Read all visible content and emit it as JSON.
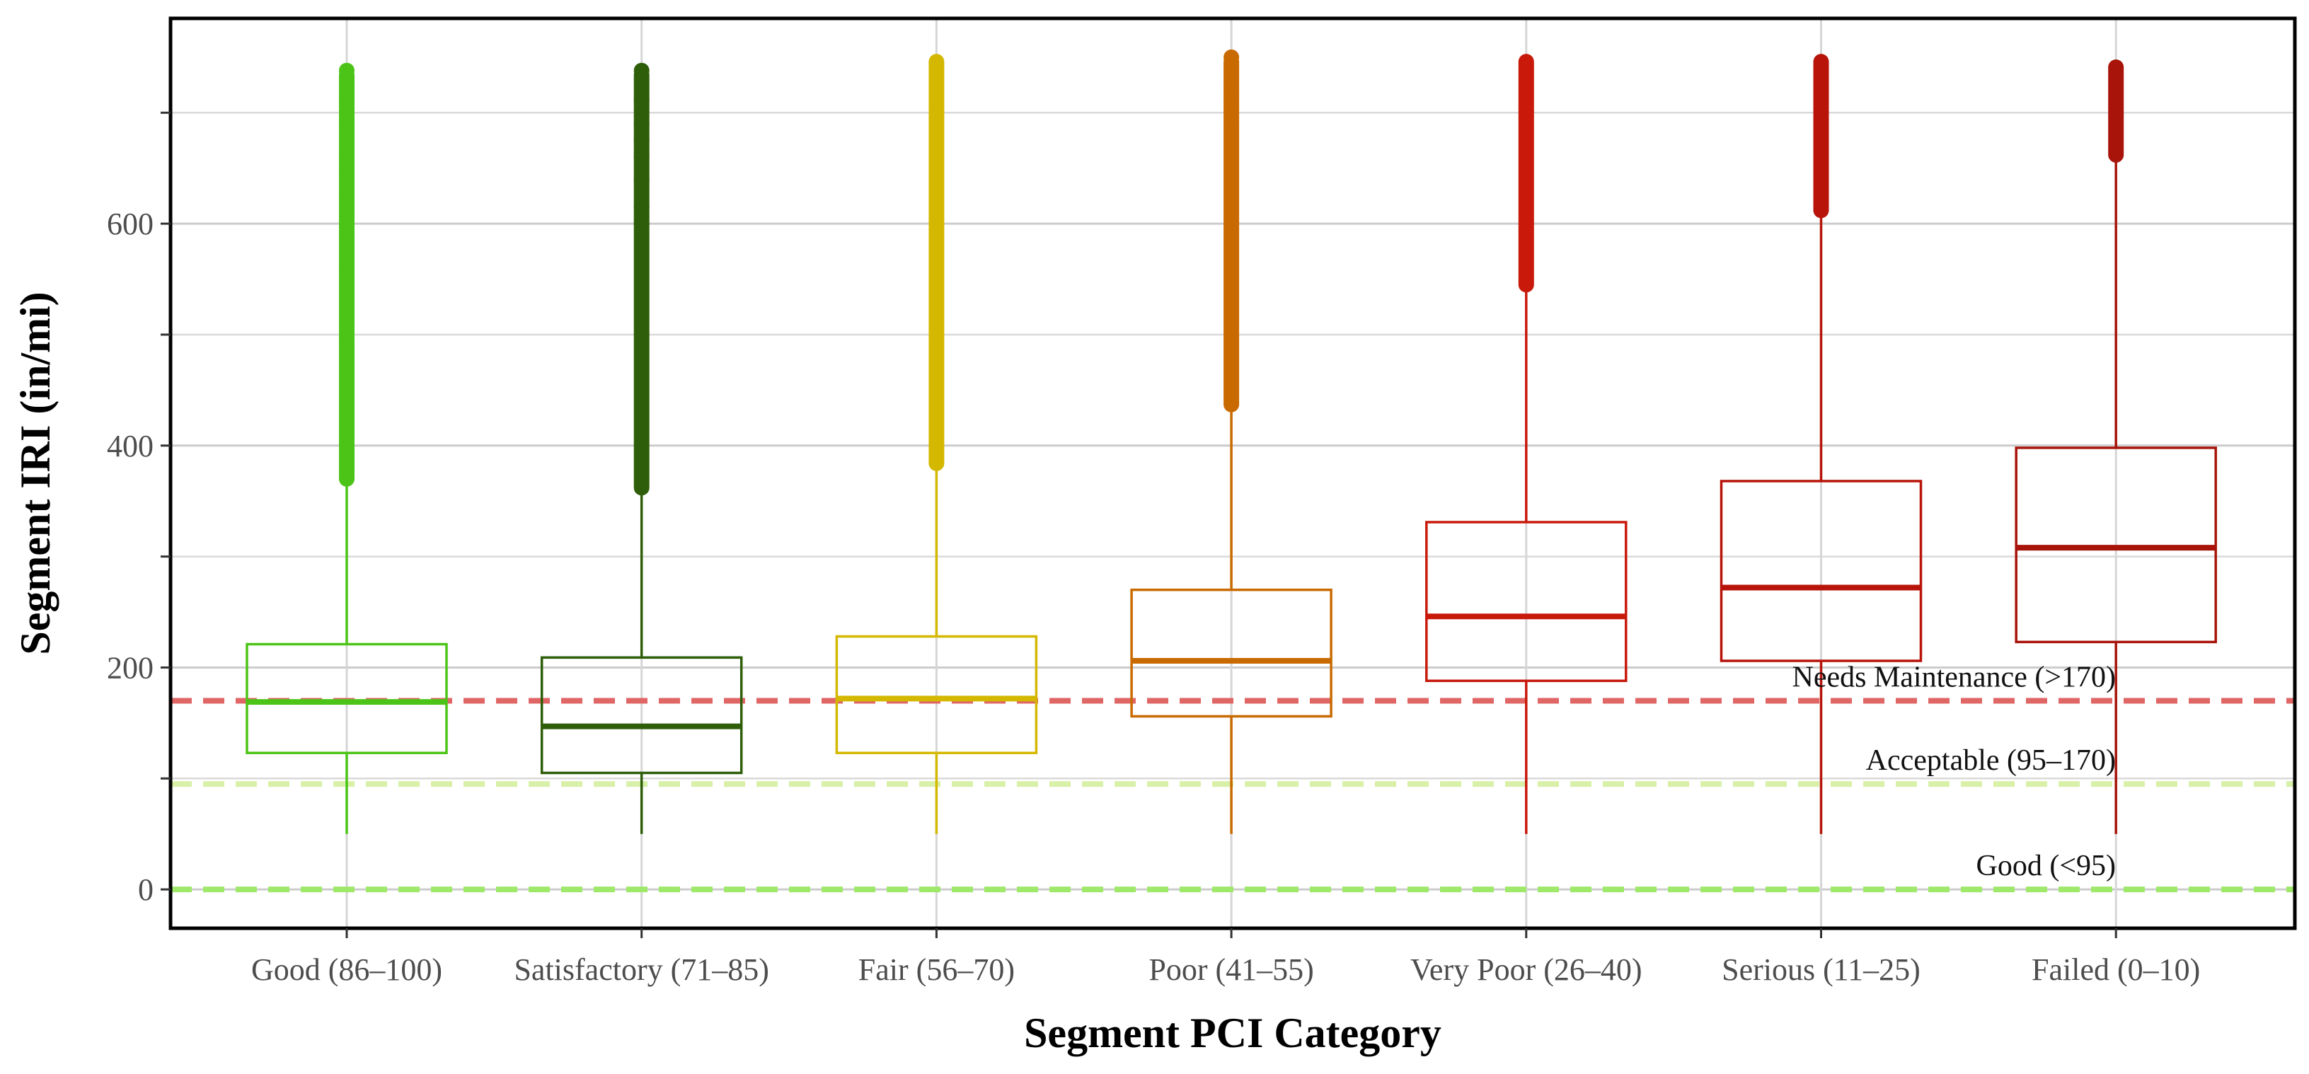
{
  "chart_data": {
    "type": "box",
    "title": "",
    "xlabel": "Segment PCI Category",
    "ylabel": "Segment IRI (in/mi)",
    "ylim": [
      -35,
      785
    ],
    "y_ticks": [
      0,
      200,
      400,
      600
    ],
    "y_minor_grid": [
      100,
      300,
      500,
      700
    ],
    "grid": true,
    "categories": [
      "Good (86–100)",
      "Satisfactory (71–85)",
      "Fair (56–70)",
      "Poor (41–55)",
      "Very Poor (26–40)",
      "Serious (11–25)",
      "Failed (0–10)"
    ],
    "boxes": [
      {
        "category": "Good (86–100)",
        "min": 50,
        "q1": 123,
        "median": 169,
        "q3": 221,
        "whisker_high": 368,
        "outliers_from": 370,
        "outliers_to": 738,
        "sparse_outliers": [
          560,
          585,
          605,
          625,
          645,
          665,
          690,
          712,
          738
        ],
        "color": "#4cc417"
      },
      {
        "category": "Satisfactory (71–85)",
        "min": 50,
        "q1": 105,
        "median": 147,
        "q3": 209,
        "whisker_high": 360,
        "outliers_from": 362,
        "outliers_to": 738,
        "sparse_outliers": [
          600,
          615,
          640,
          660,
          675,
          690,
          712,
          738
        ],
        "color": "#2e5e0a"
      },
      {
        "category": "Fair (56–70)",
        "min": 50,
        "q1": 123,
        "median": 172,
        "q3": 228,
        "whisker_high": 382,
        "outliers_from": 384,
        "outliers_to": 750,
        "sparse_outliers": [],
        "color": "#d4b800"
      },
      {
        "category": "Poor (41–55)",
        "min": 50,
        "q1": 156,
        "median": 206,
        "q3": 270,
        "whisker_high": 435,
        "outliers_from": 437,
        "outliers_to": 750,
        "sparse_outliers": [
          690,
          705,
          720,
          735,
          750
        ],
        "color": "#c96a00"
      },
      {
        "category": "Very Poor (26–40)",
        "min": 50,
        "q1": 188,
        "median": 246,
        "q3": 331,
        "whisker_high": 543,
        "outliers_from": 545,
        "outliers_to": 750,
        "sparse_outliers": [],
        "color": "#c8190b"
      },
      {
        "category": "Serious (11–25)",
        "min": 50,
        "q1": 206,
        "median": 272,
        "q3": 368,
        "whisker_high": 610,
        "outliers_from": 612,
        "outliers_to": 750,
        "sparse_outliers": [],
        "color": "#b81409"
      },
      {
        "category": "Failed (0–10)",
        "min": 50,
        "q1": 223,
        "median": 308,
        "q3": 398,
        "whisker_high": 660,
        "outliers_from": 662,
        "outliers_to": 745,
        "sparse_outliers": [],
        "color": "#a8140a"
      }
    ],
    "reference_lines": [
      {
        "value": 170,
        "label": "Needs Maintenance (>170)",
        "color": "#e06666"
      },
      {
        "value": 95,
        "label": "Acceptable (95–170)",
        "color": "#d8f0a8"
      },
      {
        "value": 0,
        "label": "Good (<95)",
        "color": "#9ee86a"
      }
    ]
  }
}
